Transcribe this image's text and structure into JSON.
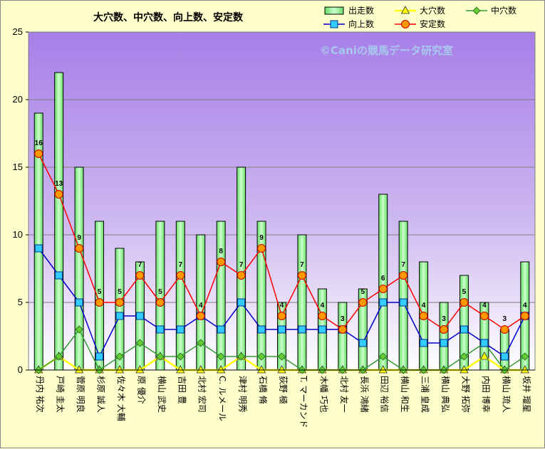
{
  "chart_data": {
    "type": "bar",
    "title": "大穴数、中穴数、向上数、安定数",
    "watermark": "©Caniの競馬データ研究室",
    "ylim": [
      0,
      25
    ],
    "yticks": [
      "0",
      "5",
      "10",
      "15",
      "20",
      "25"
    ],
    "grid": true,
    "legend_position": "top-right",
    "categories": [
      "丹内 祐次",
      "戸崎 圭太",
      "菅原 明良",
      "杉原 誠人",
      "佐々木 大輔",
      "原 優介",
      "横山 武史",
      "吉田 豊",
      "北村 宏司",
      "C. ルメール",
      "津村 明秀",
      "石橋 脩",
      "荻野 極",
      "T. マーカンド",
      "木幡 巧也",
      "北村 友一",
      "長浜 鴻緒",
      "田辺 裕信",
      "横山 和生",
      "三浦 皇成",
      "横山 典弘",
      "大野 拓弥",
      "内田 博幸",
      "横山 琉人",
      "坂井 瑠星"
    ],
    "series": [
      {
        "name": "出走数",
        "kind": "bar",
        "color": "#99ff99",
        "values": [
          19,
          22,
          15,
          11,
          9,
          8,
          11,
          11,
          10,
          11,
          15,
          11,
          5,
          10,
          6,
          5,
          6,
          13,
          11,
          8,
          5,
          7,
          5,
          3,
          8
        ]
      },
      {
        "name": "大穴数",
        "kind": "line",
        "color": "#ffff00",
        "values": [
          0,
          1,
          0,
          0,
          0,
          0,
          1,
          0,
          0,
          0,
          1,
          0,
          0,
          0,
          0,
          0,
          0,
          0,
          0,
          0,
          0,
          0,
          1,
          0,
          0
        ]
      },
      {
        "name": "中穴数",
        "kind": "line",
        "color": "#339933",
        "values": [
          0,
          1,
          3,
          0,
          1,
          2,
          1,
          1,
          2,
          1,
          1,
          1,
          1,
          0,
          0,
          0,
          0,
          1,
          0,
          0,
          0,
          1,
          2,
          0,
          1
        ]
      },
      {
        "name": "向上数",
        "kind": "line",
        "color": "#0000cc",
        "values": [
          9,
          7,
          5,
          1,
          4,
          4,
          3,
          3,
          4,
          3,
          5,
          3,
          3,
          3,
          3,
          3,
          2,
          5,
          5,
          2,
          2,
          3,
          2,
          1,
          4
        ]
      },
      {
        "name": "安定数",
        "kind": "line",
        "color": "#ff0000",
        "values": [
          16,
          13,
          9,
          5,
          5,
          7,
          5,
          7,
          4,
          8,
          7,
          9,
          4,
          7,
          4,
          3,
          5,
          6,
          7,
          4,
          3,
          5,
          4,
          3,
          4
        ]
      }
    ]
  }
}
